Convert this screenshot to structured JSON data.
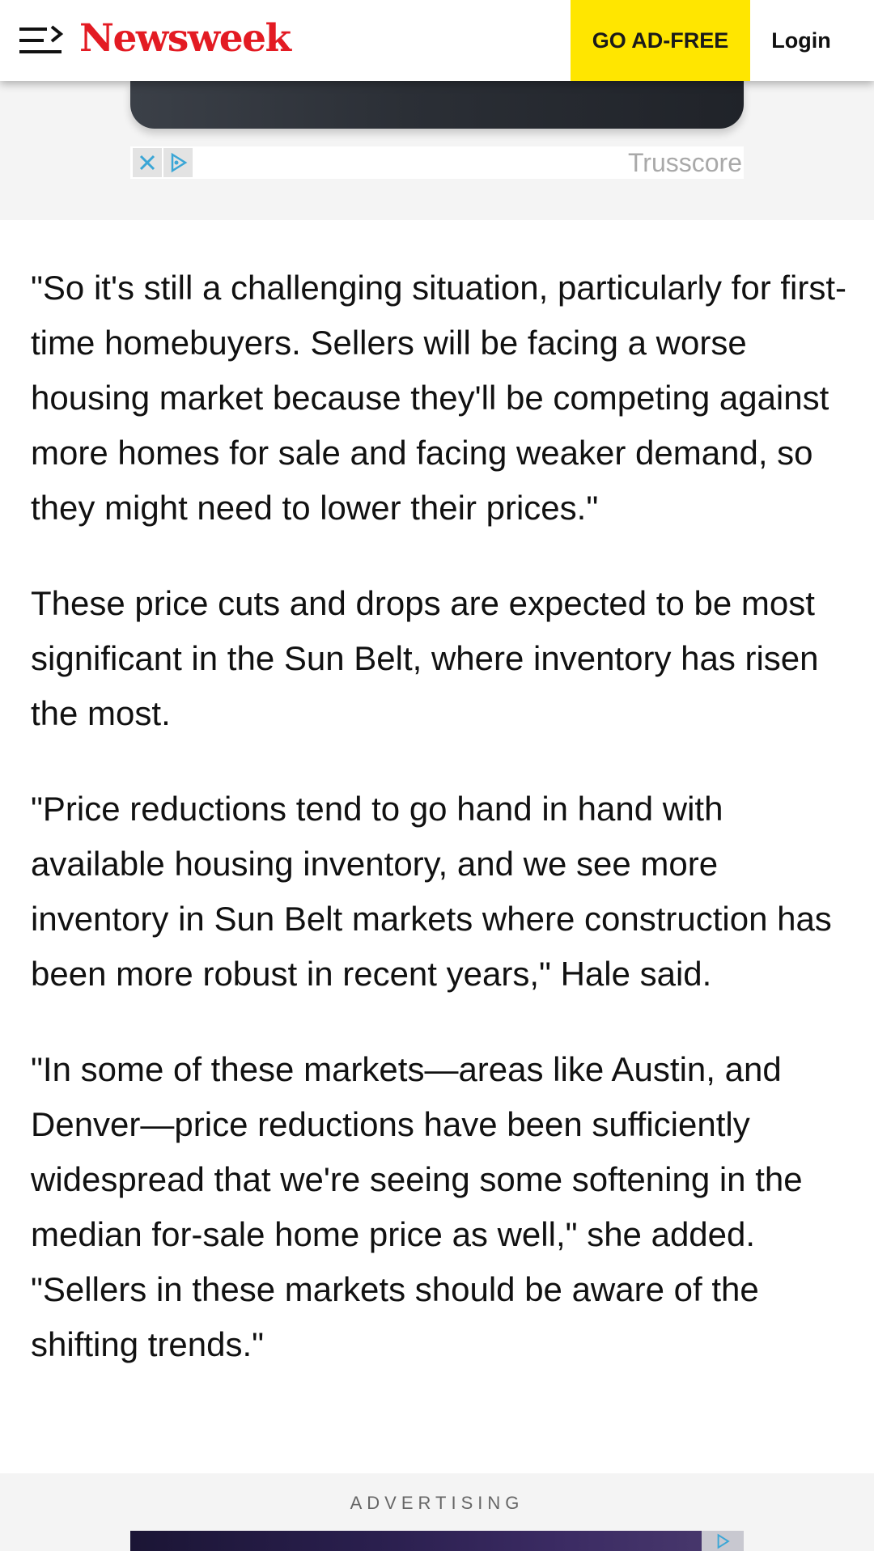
{
  "header": {
    "menu_icon": "menu-icon",
    "logo_text": "Newsweek",
    "adfree_label": "GO AD-FREE",
    "login_label": "Login",
    "colors": {
      "logo": "#e31b23",
      "adfree_bg": "#ffe600"
    }
  },
  "top_ad": {
    "close_icon": "close-icon",
    "adchoices_icon": "adchoices-icon",
    "brand": "Trusscore"
  },
  "article": {
    "paragraphs": [
      "\"So it's still a challenging situation, particularly for first-time homebuyers. Sellers will be facing a worse housing market because they'll be competing against more homes for sale and facing weaker demand, so they might need to lower their prices.\"",
      "These price cuts and drops are expected to be most significant in the Sun Belt, where inventory has risen the most.",
      "\"Price reductions tend to go hand in hand with available housing inventory, and we see more inventory in Sun Belt markets where construction has been more robust in recent years,\" Hale said.",
      "\"In some of these markets—areas like Austin, and Denver—price reductions have been sufficiently widespread that we're seeing some softening in the median for-sale home price as well,\" she added. \"Sellers in these markets should be aware of the shifting trends.\""
    ]
  },
  "bottom_ad": {
    "label": "ADVERTISING",
    "adchoices_icon": "adchoices-icon"
  }
}
